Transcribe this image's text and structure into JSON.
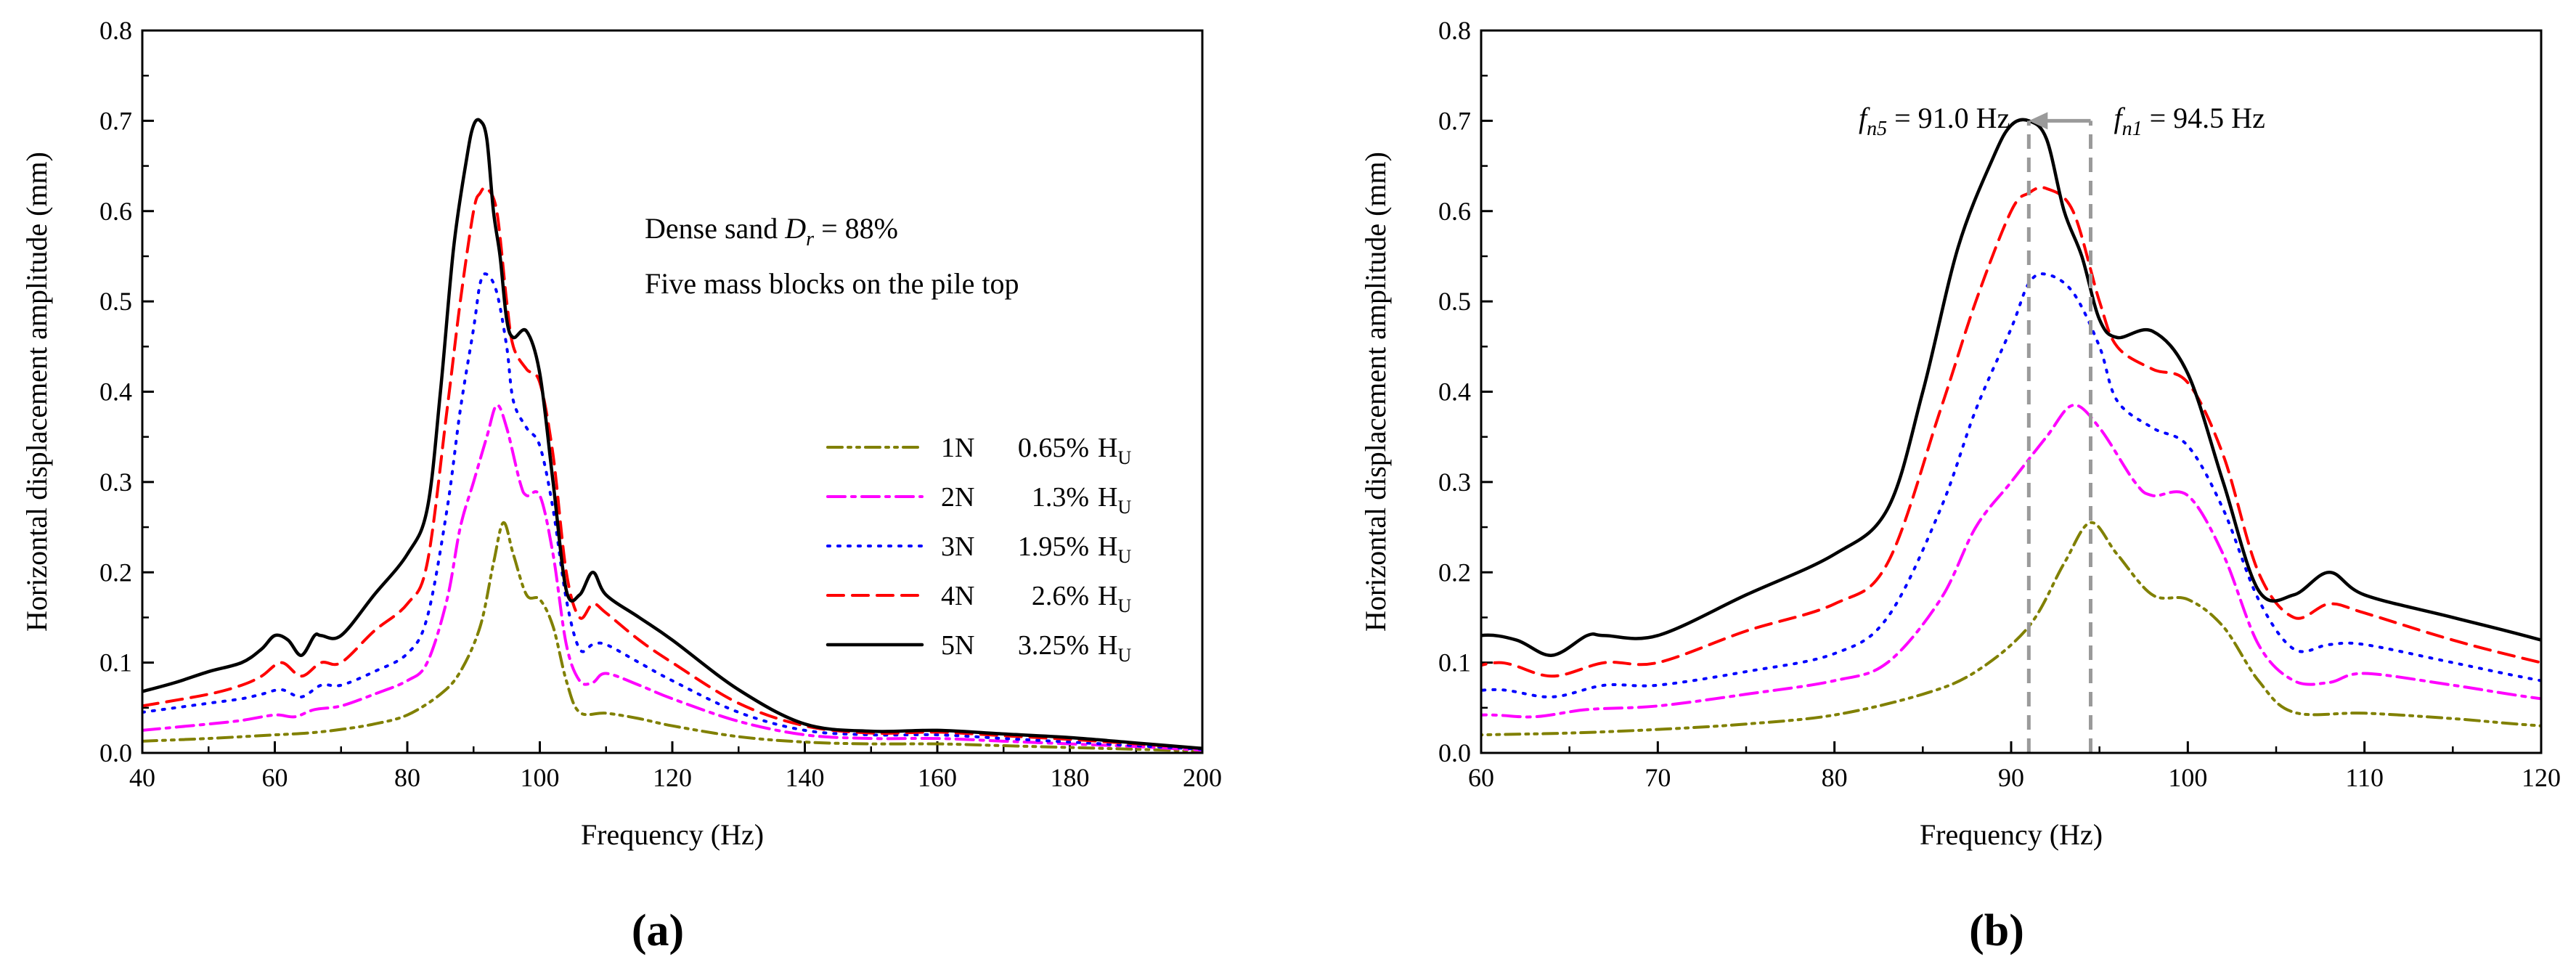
{
  "chart_data": [
    {
      "type": "line",
      "panel_label": "(a)",
      "xlabel": "Frequency (Hz)",
      "ylabel": "Horizontal displacement amplitude (mm)",
      "xlim": [
        40,
        200
      ],
      "ylim": [
        0,
        0.8
      ],
      "xticks": [
        "40",
        "60",
        "80",
        "100",
        "120",
        "140",
        "160",
        "180",
        "200"
      ],
      "yticks": [
        "0.0",
        "0.1",
        "0.2",
        "0.3",
        "0.4",
        "0.5",
        "0.6",
        "0.7",
        "0.8"
      ],
      "annotation_line1": {
        "prefix": "Dense sand  ",
        "symbol": "D",
        "subscript": "r",
        "suffix": " = 88%"
      },
      "annotation_line2": "Five mass blocks on the pile top",
      "legend_position": "right",
      "series": [
        {
          "name": "1N",
          "pct": "0.65%",
          "unit_main": "H",
          "unit_sub": "U",
          "color": "#808000",
          "style": "dashdotdot",
          "points": [
            [
              40,
              0.013
            ],
            [
              50,
              0.016
            ],
            [
              60,
              0.02
            ],
            [
              65,
              0.022
            ],
            [
              70,
              0.026
            ],
            [
              75,
              0.032
            ],
            [
              80,
              0.042
            ],
            [
              85,
              0.065
            ],
            [
              88,
              0.09
            ],
            [
              91,
              0.14
            ],
            [
              93,
              0.21
            ],
            [
              94.5,
              0.255
            ],
            [
              96,
              0.22
            ],
            [
              98,
              0.175
            ],
            [
              100,
              0.17
            ],
            [
              102,
              0.14
            ],
            [
              104,
              0.08
            ],
            [
              106,
              0.045
            ],
            [
              110,
              0.044
            ],
            [
              115,
              0.038
            ],
            [
              120,
              0.03
            ],
            [
              130,
              0.018
            ],
            [
              140,
              0.012
            ],
            [
              150,
              0.01
            ],
            [
              160,
              0.01
            ],
            [
              170,
              0.008
            ],
            [
              180,
              0.006
            ],
            [
              190,
              0.004
            ],
            [
              200,
              0.002
            ]
          ]
        },
        {
          "name": "2N",
          "pct": "1.3%",
          "unit_main": "H",
          "unit_sub": "U",
          "color": "#ff00ff",
          "style": "dashdot",
          "points": [
            [
              40,
              0.025
            ],
            [
              50,
              0.032
            ],
            [
              55,
              0.036
            ],
            [
              60,
              0.042
            ],
            [
              63,
              0.04
            ],
            [
              66,
              0.048
            ],
            [
              70,
              0.052
            ],
            [
              75,
              0.065
            ],
            [
              80,
              0.08
            ],
            [
              83,
              0.1
            ],
            [
              86,
              0.17
            ],
            [
              88,
              0.25
            ],
            [
              90,
              0.3
            ],
            [
              92,
              0.35
            ],
            [
              93.5,
              0.385
            ],
            [
              95,
              0.36
            ],
            [
              97,
              0.3
            ],
            [
              98,
              0.285
            ],
            [
              100,
              0.285
            ],
            [
              102,
              0.22
            ],
            [
              104,
              0.12
            ],
            [
              106,
              0.08
            ],
            [
              108,
              0.078
            ],
            [
              110,
              0.088
            ],
            [
              115,
              0.075
            ],
            [
              120,
              0.06
            ],
            [
              130,
              0.035
            ],
            [
              140,
              0.02
            ],
            [
              150,
              0.016
            ],
            [
              160,
              0.016
            ],
            [
              170,
              0.013
            ],
            [
              180,
              0.01
            ],
            [
              190,
              0.007
            ],
            [
              200,
              0.003
            ]
          ]
        },
        {
          "name": "3N",
          "pct": "1.95%",
          "unit_main": "H",
          "unit_sub": "U",
          "color": "#0000ff",
          "style": "dotted",
          "points": [
            [
              40,
              0.045
            ],
            [
              50,
              0.055
            ],
            [
              55,
              0.06
            ],
            [
              58,
              0.065
            ],
            [
              61,
              0.07
            ],
            [
              64,
              0.062
            ],
            [
              67,
              0.075
            ],
            [
              70,
              0.075
            ],
            [
              75,
              0.09
            ],
            [
              80,
              0.11
            ],
            [
              83,
              0.15
            ],
            [
              86,
              0.27
            ],
            [
              88,
              0.38
            ],
            [
              90,
              0.47
            ],
            [
              91,
              0.52
            ],
            [
              92,
              0.53
            ],
            [
              93.5,
              0.51
            ],
            [
              95,
              0.45
            ],
            [
              96,
              0.39
            ],
            [
              98,
              0.36
            ],
            [
              100,
              0.34
            ],
            [
              102,
              0.27
            ],
            [
              104,
              0.17
            ],
            [
              106,
              0.115
            ],
            [
              108,
              0.12
            ],
            [
              110,
              0.12
            ],
            [
              115,
              0.1
            ],
            [
              120,
              0.08
            ],
            [
              130,
              0.045
            ],
            [
              140,
              0.025
            ],
            [
              150,
              0.02
            ],
            [
              160,
              0.02
            ],
            [
              170,
              0.016
            ],
            [
              180,
              0.012
            ],
            [
              190,
              0.008
            ],
            [
              200,
              0.004
            ]
          ]
        },
        {
          "name": "4N",
          "pct": "2.6%",
          "unit_main": "H",
          "unit_sub": "U",
          "color": "#ff0000",
          "style": "dashed",
          "points": [
            [
              40,
              0.052
            ],
            [
              50,
              0.065
            ],
            [
              55,
              0.075
            ],
            [
              58,
              0.085
            ],
            [
              61,
              0.1
            ],
            [
              64,
              0.085
            ],
            [
              67,
              0.1
            ],
            [
              70,
              0.1
            ],
            [
              75,
              0.135
            ],
            [
              80,
              0.165
            ],
            [
              83,
              0.21
            ],
            [
              86,
              0.38
            ],
            [
              88,
              0.5
            ],
            [
              90,
              0.6
            ],
            [
              91,
              0.62
            ],
            [
              92,
              0.625
            ],
            [
              93.5,
              0.6
            ],
            [
              95,
              0.5
            ],
            [
              96,
              0.45
            ],
            [
              98,
              0.425
            ],
            [
              100,
              0.41
            ],
            [
              102,
              0.33
            ],
            [
              104,
              0.2
            ],
            [
              106,
              0.15
            ],
            [
              108,
              0.165
            ],
            [
              110,
              0.155
            ],
            [
              115,
              0.125
            ],
            [
              120,
              0.1
            ],
            [
              130,
              0.055
            ],
            [
              140,
              0.03
            ],
            [
              150,
              0.022
            ],
            [
              160,
              0.023
            ],
            [
              170,
              0.019
            ],
            [
              180,
              0.015
            ],
            [
              190,
              0.01
            ],
            [
              200,
              0.005
            ]
          ]
        },
        {
          "name": "5N",
          "pct": "3.25%",
          "unit_main": "H",
          "unit_sub": "U",
          "color": "#000000",
          "style": "solid",
          "points": [
            [
              40,
              0.068
            ],
            [
              45,
              0.078
            ],
            [
              50,
              0.09
            ],
            [
              55,
              0.1
            ],
            [
              58,
              0.115
            ],
            [
              60,
              0.13
            ],
            [
              62,
              0.125
            ],
            [
              64,
              0.108
            ],
            [
              66,
              0.13
            ],
            [
              67,
              0.13
            ],
            [
              70,
              0.13
            ],
            [
              75,
              0.175
            ],
            [
              80,
              0.22
            ],
            [
              83,
              0.27
            ],
            [
              85,
              0.4
            ],
            [
              87,
              0.56
            ],
            [
              89,
              0.66
            ],
            [
              90,
              0.695
            ],
            [
              91,
              0.7
            ],
            [
              92,
              0.68
            ],
            [
              93,
              0.6
            ],
            [
              94,
              0.55
            ],
            [
              95,
              0.48
            ],
            [
              96,
              0.46
            ],
            [
              98,
              0.467
            ],
            [
              100,
              0.42
            ],
            [
              102,
              0.3
            ],
            [
              104,
              0.18
            ],
            [
              106,
              0.175
            ],
            [
              108,
              0.2
            ],
            [
              110,
              0.175
            ],
            [
              115,
              0.15
            ],
            [
              120,
              0.125
            ],
            [
              130,
              0.07
            ],
            [
              140,
              0.032
            ],
            [
              150,
              0.024
            ],
            [
              160,
              0.025
            ],
            [
              170,
              0.021
            ],
            [
              180,
              0.017
            ],
            [
              190,
              0.011
            ],
            [
              200,
              0.005
            ]
          ]
        }
      ]
    },
    {
      "type": "line",
      "panel_label": "(b)",
      "xlabel": "Frequency (Hz)",
      "ylabel": "Horizontal displacement amplitude (mm)",
      "xlim": [
        60,
        120
      ],
      "ylim": [
        0,
        0.8
      ],
      "xticks": [
        "60",
        "70",
        "80",
        "90",
        "100",
        "110",
        "120"
      ],
      "yticks": [
        "0.0",
        "0.1",
        "0.2",
        "0.3",
        "0.4",
        "0.5",
        "0.6",
        "0.7",
        "0.8"
      ],
      "markers": [
        {
          "symbol": "f",
          "subscript": "n5",
          "text": " = 91.0 Hz",
          "x": 91.0,
          "label_side": "left"
        },
        {
          "symbol": "f",
          "subscript": "n1",
          "text": " = 94.5 Hz",
          "x": 94.5,
          "label_side": "right"
        }
      ],
      "marker_arrow": {
        "from_x": 94.5,
        "to_x": 91.0,
        "y": 0.7
      },
      "series_ref": "same data as panel (a), clipped to 60–120 Hz"
    }
  ]
}
